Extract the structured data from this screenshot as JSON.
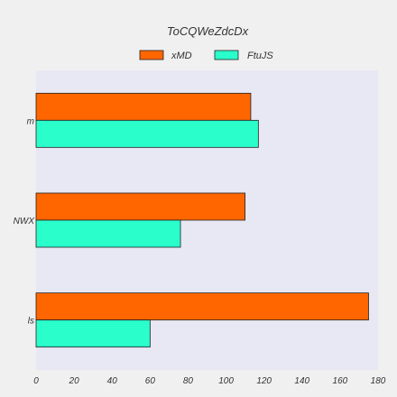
{
  "chart_data": {
    "type": "bar",
    "orientation": "horizontal",
    "title": "ToCQWeZdcDx",
    "categories": [
      "m",
      "NWX",
      "ls"
    ],
    "series": [
      {
        "name": "xMD",
        "values": [
          113,
          110,
          175
        ],
        "color": "#ff6600"
      },
      {
        "name": "FtuJS",
        "values": [
          117,
          76,
          60
        ],
        "color": "#2affcc"
      }
    ],
    "x_ticks": [
      0,
      20,
      40,
      60,
      80,
      100,
      120,
      140,
      160,
      180
    ],
    "xlim": [
      0,
      180
    ],
    "xlabel": "",
    "ylabel": "",
    "grid": false,
    "legend_position": "top-center",
    "plot_background": "#e8e8f4",
    "page_background": "#f0f0f0"
  }
}
